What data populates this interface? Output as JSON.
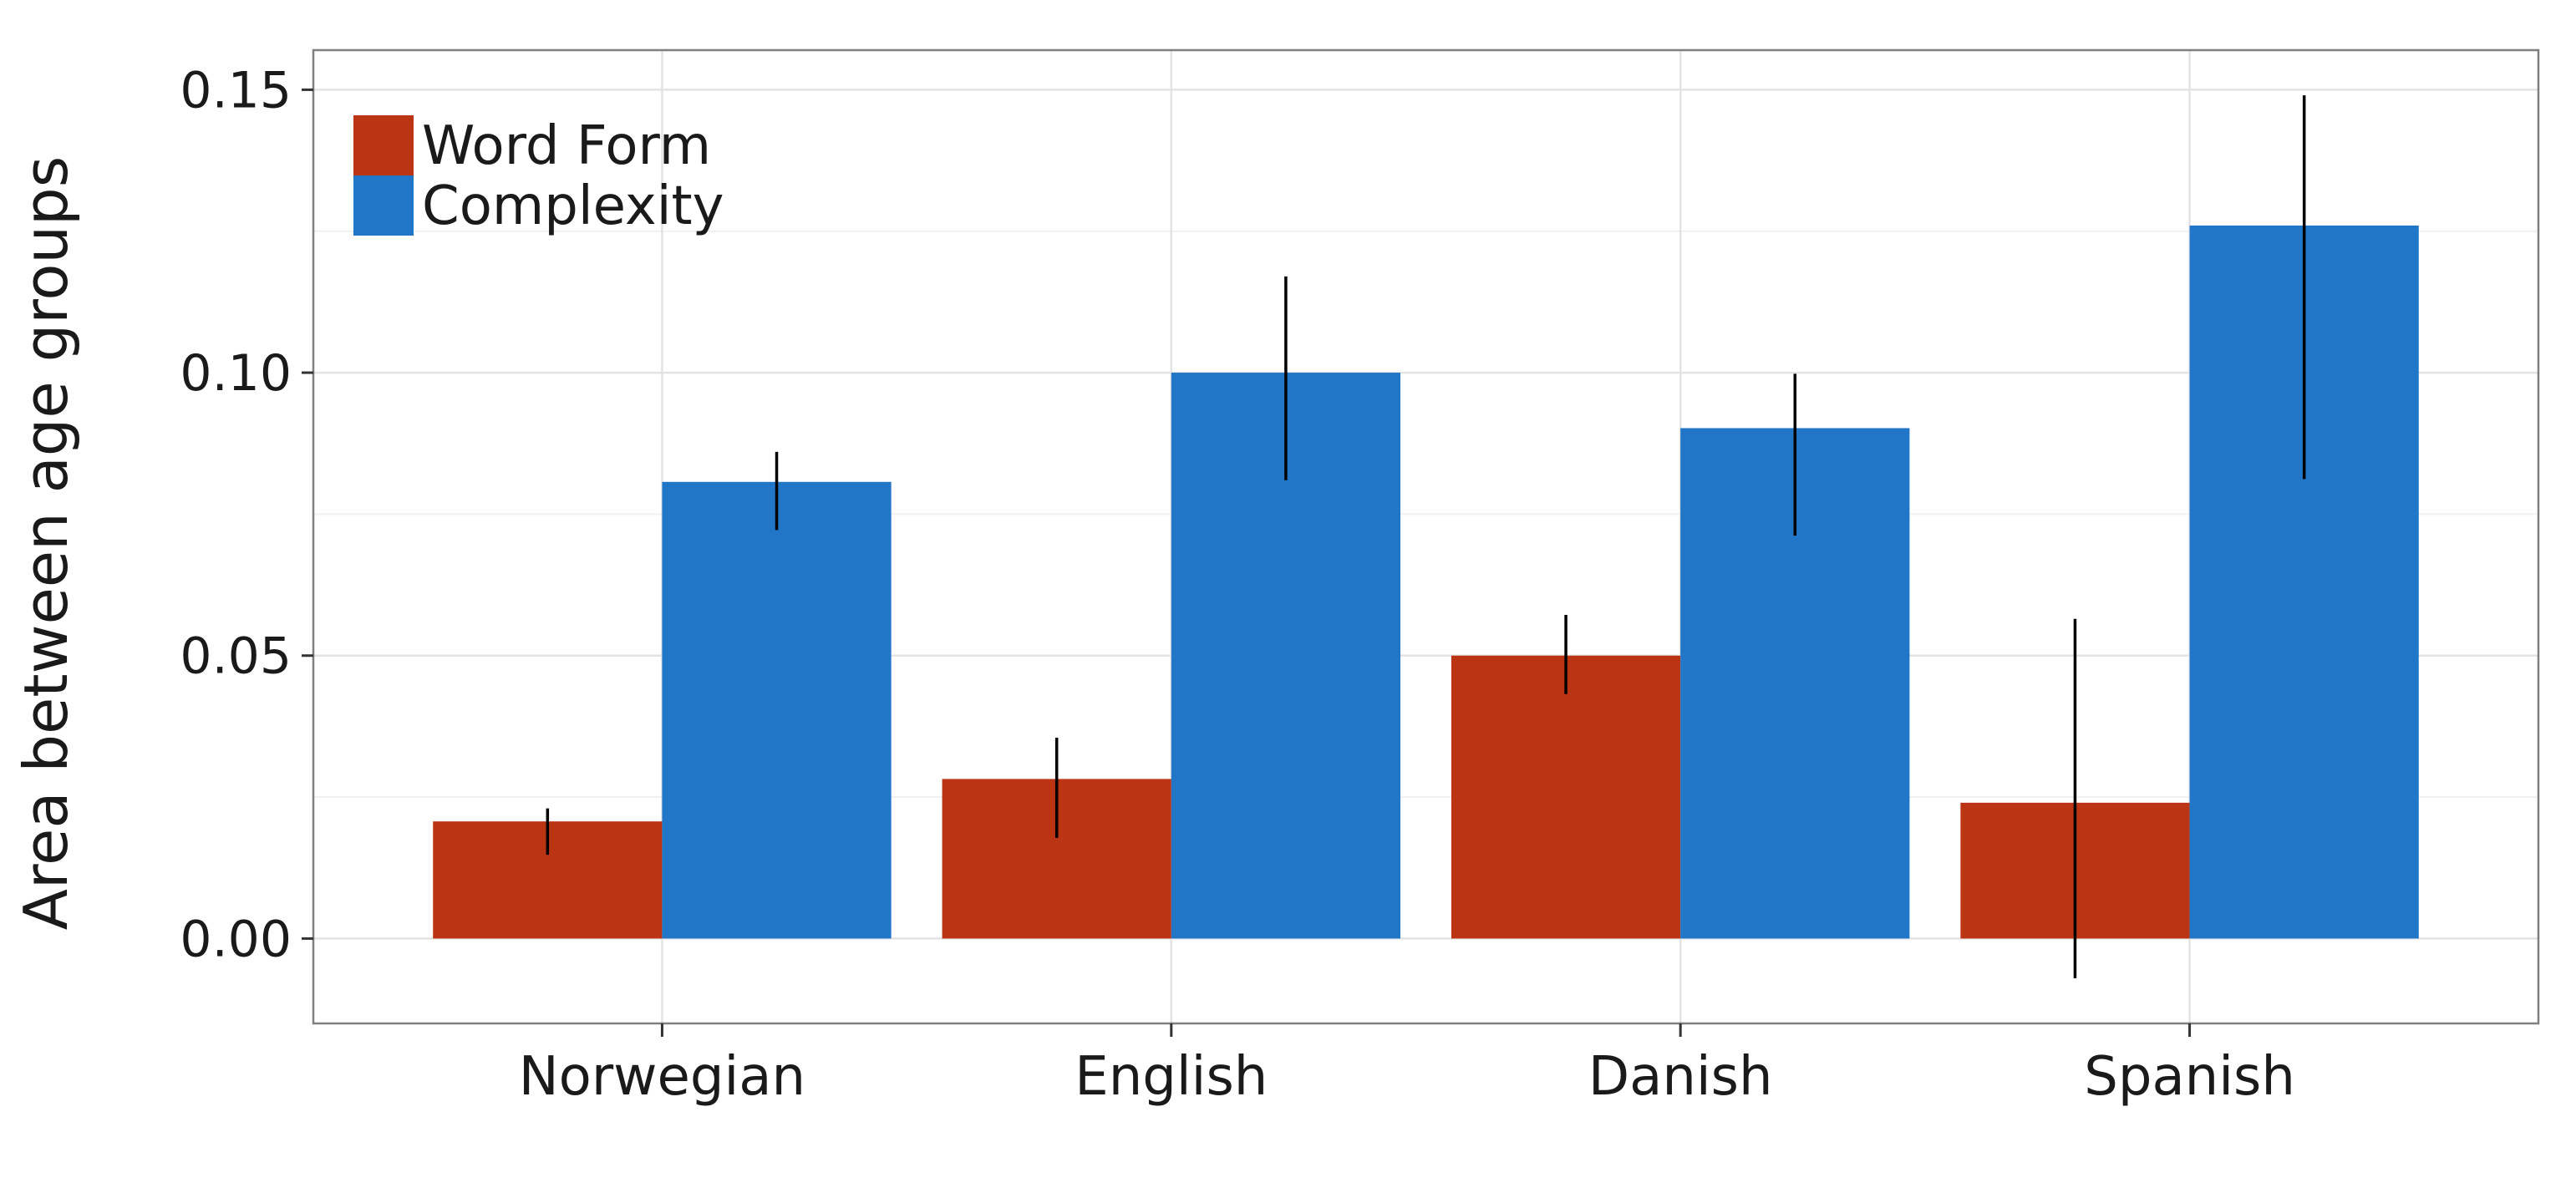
{
  "chart_data": {
    "type": "bar",
    "ylabel": "Area between age groups",
    "xlabel": "",
    "ylim": [
      -0.015,
      0.157
    ],
    "yticks": [
      0.0,
      0.05,
      0.1,
      0.15
    ],
    "ytick_labels": [
      "0.00",
      "0.05",
      "0.10",
      "0.15"
    ],
    "grid": true,
    "legend_position": "top-left",
    "categories": [
      "Norwegian",
      "English",
      "Danish",
      "Spanish"
    ],
    "series": [
      {
        "name": "Word Form",
        "color": "#bb3514",
        "values": [
          0.0207,
          0.0282,
          0.05,
          0.024
        ],
        "error_low": [
          0.0148,
          0.0178,
          0.0432,
          -0.007
        ],
        "error_high": [
          0.023,
          0.0355,
          0.0572,
          0.0565
        ]
      },
      {
        "name": "Complexity",
        "color": "#2276c8",
        "values": [
          0.0807,
          0.1,
          0.0902,
          0.126
        ],
        "error_low": [
          0.0722,
          0.081,
          0.0712,
          0.0812
        ],
        "error_high": [
          0.086,
          0.117,
          0.0998,
          0.149
        ]
      }
    ]
  }
}
